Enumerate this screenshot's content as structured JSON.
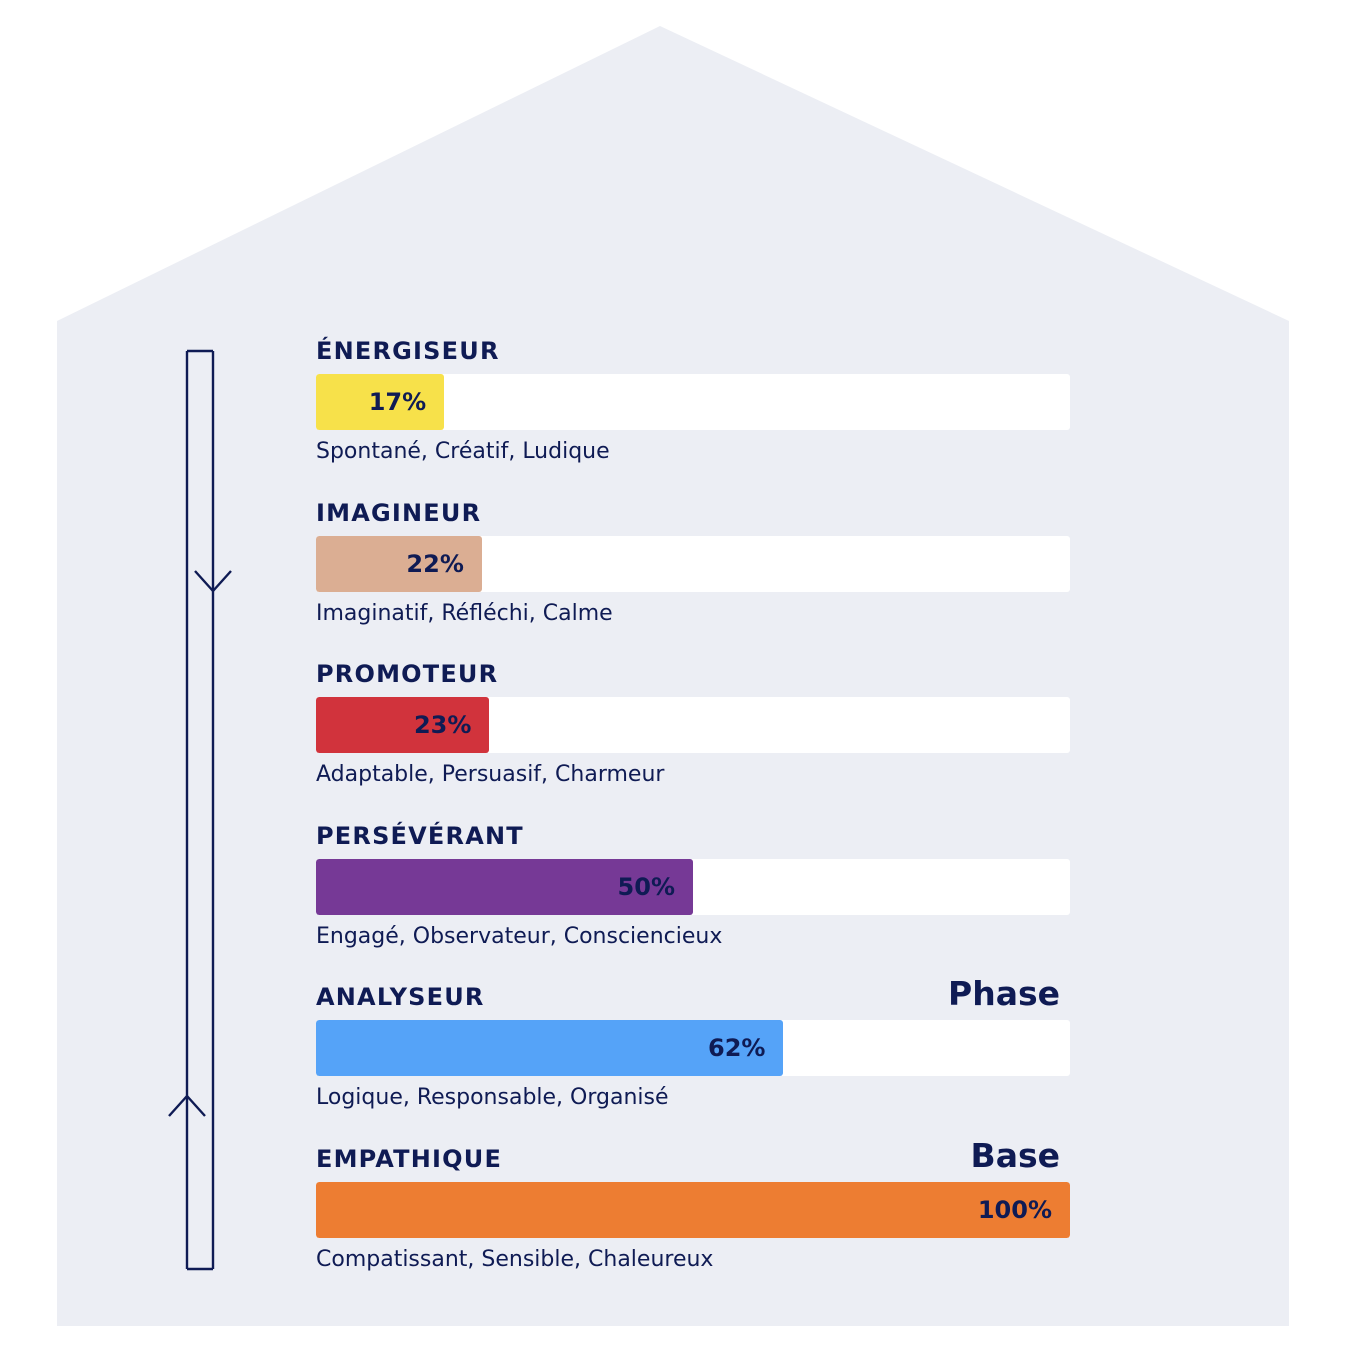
{
  "colors": {
    "background": "#eceef4",
    "text": "#0f1b54",
    "track": "#ffffff"
  },
  "chart_data": {
    "type": "bar",
    "orientation": "horizontal",
    "xlim": [
      0,
      100
    ],
    "unit": "%",
    "categories": [
      "ÉNERGISEUR",
      "IMAGINEUR",
      "PROMOTEUR",
      "PERSÉVÉRANT",
      "ANALYSEUR",
      "EMPATHIQUE"
    ],
    "values": [
      17,
      22,
      23,
      50,
      62,
      100
    ],
    "value_labels": [
      "17%",
      "22%",
      "23%",
      "50%",
      "62%",
      "100%"
    ],
    "descriptions": [
      "Spontané, Créatif, Ludique",
      "Imaginatif, Réfléchi, Calme",
      "Adaptable, Persuasif, Charmeur",
      "Engagé, Observateur, Consciencieux",
      "Logique, Responsable, Organisé",
      "Compatissant, Sensible, Chaleureux"
    ],
    "bar_colors": [
      "#f7e14a",
      "#dbae93",
      "#d1333c",
      "#763996",
      "#55a3f8",
      "#ed7d32"
    ],
    "tags": [
      "",
      "",
      "",
      "",
      "Phase",
      "Base"
    ],
    "arrows": [
      "down",
      "up"
    ]
  }
}
